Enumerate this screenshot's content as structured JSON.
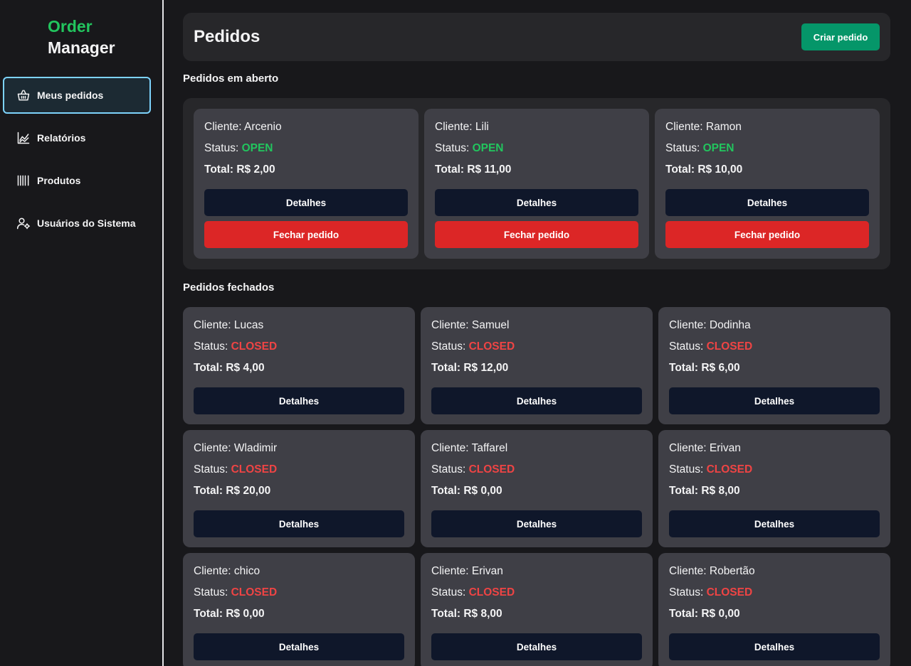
{
  "app": {
    "logo_line1": "Order",
    "logo_line2": "Manager"
  },
  "sidebar": {
    "items": [
      {
        "label": "Meus pedidos",
        "icon": "basket-icon",
        "active": true
      },
      {
        "label": "Relatórios",
        "icon": "chart-icon",
        "active": false
      },
      {
        "label": "Produtos",
        "icon": "barcode-icon",
        "active": false
      },
      {
        "label": "Usuários do Sistema",
        "icon": "user-gear-icon",
        "active": false
      }
    ]
  },
  "header": {
    "title": "Pedidos",
    "create_label": "Criar pedido"
  },
  "labels": {
    "client_prefix": "Cliente: ",
    "status_prefix": "Status: ",
    "total_prefix": "Total: ",
    "details_label": "Detalhes",
    "close_label": "Fechar pedido"
  },
  "open_section": {
    "title": "Pedidos em aberto",
    "orders": [
      {
        "client": "Arcenio",
        "status": "OPEN",
        "total": "R$ 2,00"
      },
      {
        "client": "Lili",
        "status": "OPEN",
        "total": "R$ 11,00"
      },
      {
        "client": "Ramon",
        "status": "OPEN",
        "total": "R$ 10,00"
      }
    ]
  },
  "closed_section": {
    "title": "Pedidos fechados",
    "orders": [
      {
        "client": "Lucas",
        "status": "CLOSED",
        "total": "R$ 4,00"
      },
      {
        "client": "Samuel",
        "status": "CLOSED",
        "total": "R$ 12,00"
      },
      {
        "client": "Dodinha",
        "status": "CLOSED",
        "total": "R$ 6,00"
      },
      {
        "client": "Wladimir",
        "status": "CLOSED",
        "total": "R$ 20,00"
      },
      {
        "client": "Taffarel",
        "status": "CLOSED",
        "total": "R$ 0,00"
      },
      {
        "client": "Erivan",
        "status": "CLOSED",
        "total": "R$ 8,00"
      },
      {
        "client": "chico",
        "status": "CLOSED",
        "total": "R$ 0,00"
      },
      {
        "client": "Erivan",
        "status": "CLOSED",
        "total": "R$ 8,00"
      },
      {
        "client": "Robertão",
        "status": "CLOSED",
        "total": "R$ 0,00"
      }
    ]
  },
  "colors": {
    "brand": "#22c55e",
    "open": "#22c55e",
    "closed": "#ef4444",
    "primary_button": "#059669",
    "danger_button": "#dc2626",
    "details_button": "#0f172a"
  }
}
